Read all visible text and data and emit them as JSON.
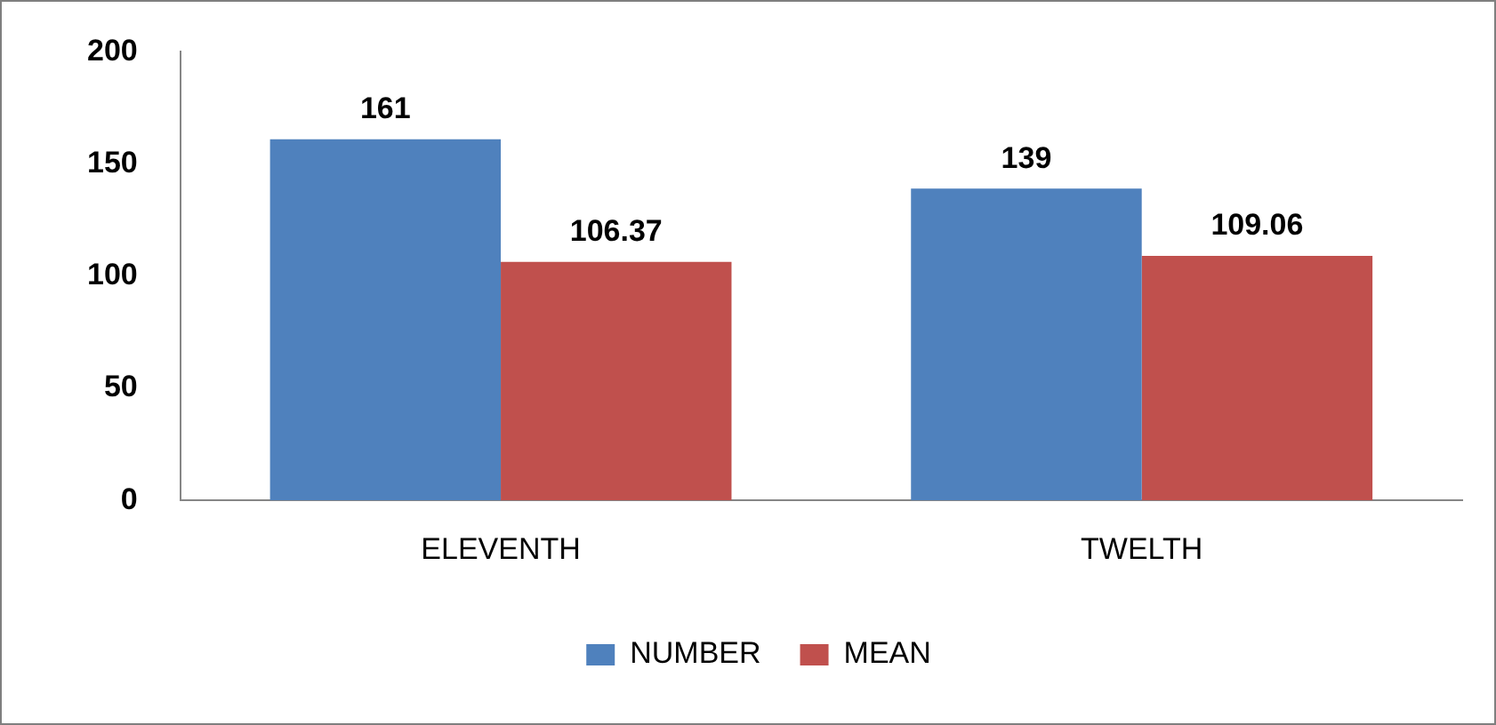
{
  "chart_data": {
    "type": "bar",
    "categories": [
      "ELEVENTH",
      "TWELTH"
    ],
    "series": [
      {
        "name": "NUMBER",
        "color": "#4f81bd",
        "values": [
          161,
          139
        ]
      },
      {
        "name": "MEAN",
        "color": "#c0504d",
        "values": [
          106.37,
          109.06
        ]
      }
    ],
    "ylim": [
      0,
      200
    ],
    "yticks": [
      0,
      50,
      100,
      150,
      200
    ],
    "grid": false,
    "legend": "bottom",
    "data_labels": true
  }
}
